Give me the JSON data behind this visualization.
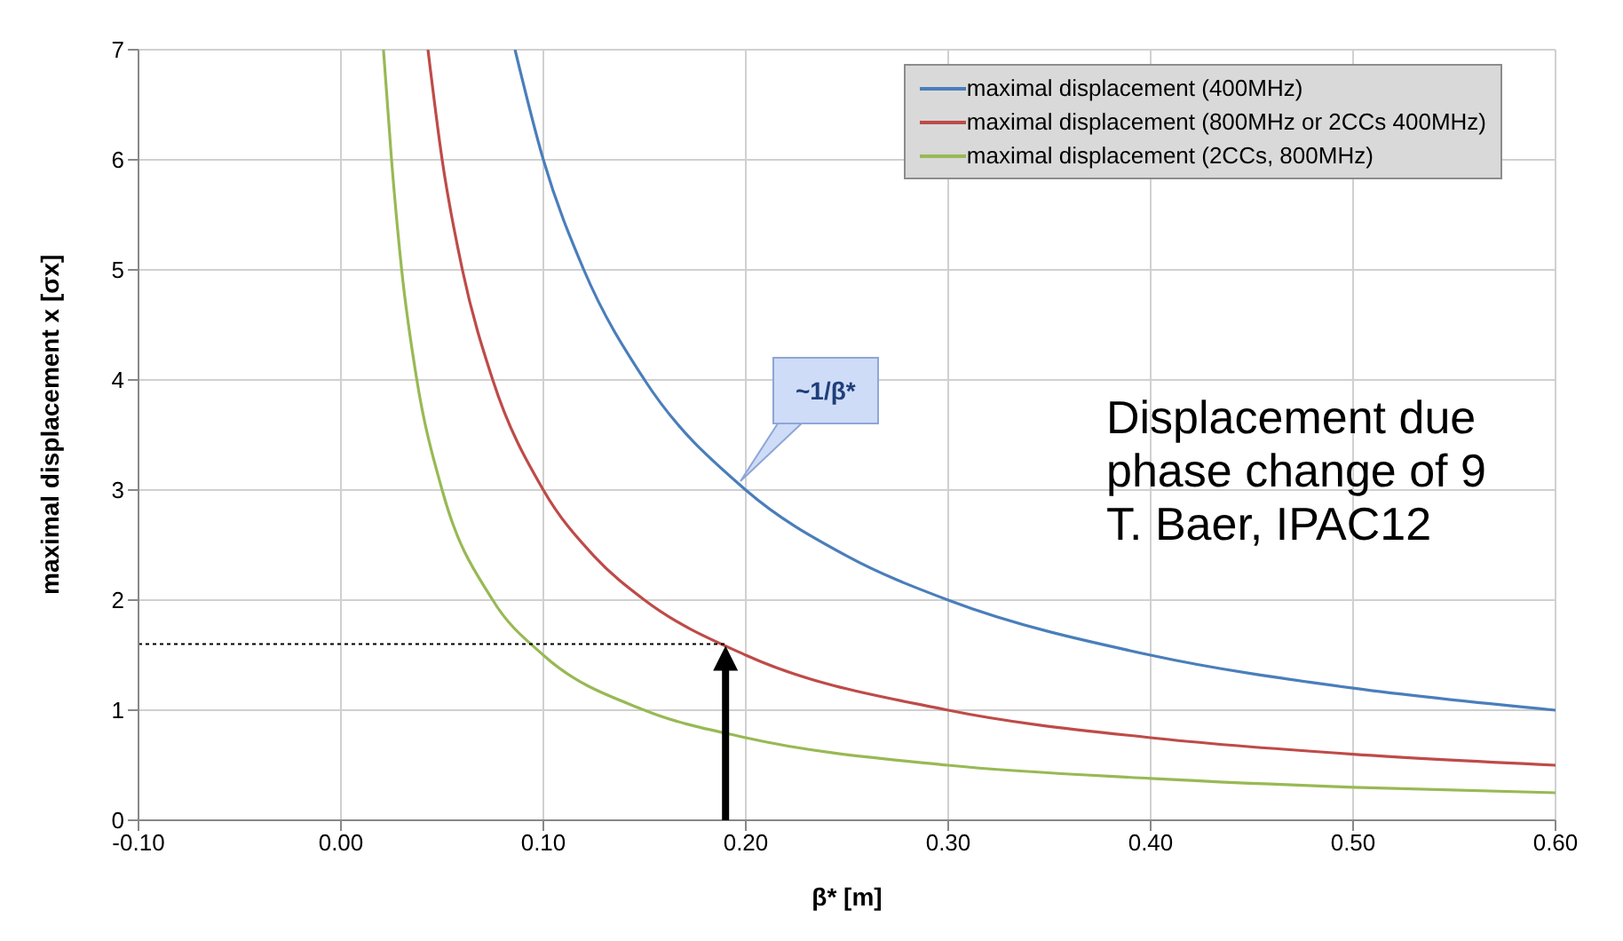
{
  "chart_data": {
    "type": "line",
    "xlabel": "β* [m]",
    "ylabel": "maximal displacement x [σx]",
    "xlim": [
      -0.1,
      0.6
    ],
    "xticks": [
      {
        "value": -0.1,
        "label": "-0.10"
      },
      {
        "value": 0,
        "label": "0.00"
      },
      {
        "value": 0.1,
        "label": "0.10"
      },
      {
        "value": 0.2,
        "label": "0.20"
      },
      {
        "value": 0.3,
        "label": "0.30"
      },
      {
        "value": 0.4,
        "label": "0.40"
      },
      {
        "value": 0.5,
        "label": "0.50"
      },
      {
        "value": 0.6,
        "label": "0.60"
      }
    ],
    "ylim": [
      0,
      7
    ],
    "yticks": [
      0,
      1,
      2,
      3,
      4,
      5,
      6,
      7
    ],
    "grid": true,
    "legend": "top right",
    "marker": "none",
    "line_style": "solid",
    "series": [
      {
        "name": "maximal displacement (400MHz)",
        "color": "#4a7ebb",
        "x": [
          0.086,
          0.1,
          0.12,
          0.15,
          0.2,
          0.25,
          0.3,
          0.4,
          0.5,
          0.6
        ],
        "values": [
          7,
          6,
          5,
          4,
          3,
          2.4,
          2,
          1.5,
          1.2,
          1
        ]
      },
      {
        "name": "maximal displacement (800MHz or 2CCs 400MHz)",
        "color": "#be4b48",
        "x": [
          0.043,
          0.05,
          0.06,
          0.075,
          0.1,
          0.125,
          0.15,
          0.2,
          0.3,
          0.4,
          0.5,
          0.6
        ],
        "values": [
          7,
          6,
          5,
          4,
          3,
          2.4,
          2,
          1.5,
          1,
          0.75,
          0.6,
          0.5
        ]
      },
      {
        "name": "maximal displacement (2CCs, 800MHz)",
        "color": "#98b954",
        "x": [
          0.021,
          0.025,
          0.03,
          0.0375,
          0.05,
          0.075,
          0.1,
          0.15,
          0.2,
          0.3,
          0.4,
          0.5,
          0.6
        ],
        "values": [
          7,
          6,
          5,
          4,
          3,
          2,
          1.5,
          1,
          0.75,
          0.5,
          0.38,
          0.3,
          0.25
        ]
      }
    ],
    "ref_lines": [
      {
        "axis": "y",
        "value": 1.6,
        "color": "#000000",
        "line_style": "dotted"
      }
    ],
    "annotations": [
      "~1/β*",
      "Displacement due",
      "phase change of 9",
      "T. Baer, IPAC12"
    ]
  }
}
